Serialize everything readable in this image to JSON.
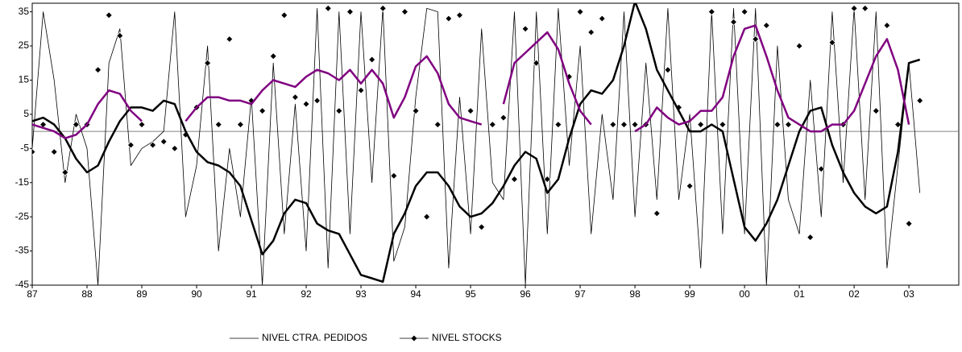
{
  "chart_data": {
    "type": "line",
    "x": [
      1987,
      1987.2,
      1987.4,
      1987.6,
      1987.8,
      1988,
      1988.2,
      1988.4,
      1988.6,
      1988.8,
      1989,
      1989.2,
      1989.4,
      1989.6,
      1989.8,
      1990,
      1990.2,
      1990.4,
      1990.6,
      1990.8,
      1991,
      1991.2,
      1991.4,
      1991.6,
      1991.8,
      1992,
      1992.2,
      1992.4,
      1992.6,
      1992.8,
      1993,
      1993.2,
      1993.4,
      1993.6,
      1993.8,
      1994,
      1994.2,
      1994.4,
      1994.6,
      1994.8,
      1995,
      1995.2,
      1995.4,
      1995.6,
      1995.8,
      1996,
      1996.2,
      1996.4,
      1996.6,
      1996.8,
      1997,
      1997.2,
      1997.4,
      1997.6,
      1997.8,
      1998,
      1998.2,
      1998.4,
      1998.6,
      1998.8,
      1999,
      1999.2,
      1999.4,
      1999.6,
      1999.8,
      2000,
      2000.2,
      2000.4,
      2000.6,
      2000.8,
      2001,
      2001.2,
      2001.4,
      2001.6,
      2001.8,
      2002,
      2002.2,
      2002.4,
      2002.6,
      2002.8,
      2003,
      2003.2
    ],
    "series": [
      {
        "name": "NIVEL CTRA. PEDIDOS",
        "color": "#000000",
        "style": "thin",
        "values": [
          -5,
          35,
          15,
          -15,
          5,
          -5,
          -45,
          20,
          30,
          -10,
          -5,
          -3,
          0,
          35,
          -25,
          -10,
          25,
          -35,
          -5,
          -25,
          10,
          -45,
          20,
          -30,
          8,
          -35,
          36,
          -40,
          35,
          -30,
          35,
          -15,
          36,
          -38,
          -28,
          10,
          36,
          35,
          -40,
          10,
          -30,
          30,
          -15,
          -20,
          35,
          -45,
          35,
          -30,
          36,
          -10,
          25,
          -30,
          5,
          -20,
          35,
          -25,
          20,
          -20,
          36,
          -20,
          5,
          -40,
          35,
          -30,
          36,
          -30,
          36,
          -45,
          25,
          -20,
          -30,
          15,
          -25,
          35,
          -15,
          36,
          -20,
          35,
          -40,
          -10,
          20,
          -18
        ]
      },
      {
        "name": "NIVEL STOCKS",
        "color": "#000000",
        "style": "markers",
        "values": [
          -6,
          2,
          -6,
          -12,
          2,
          2,
          18,
          34,
          28,
          -4,
          2,
          -4,
          -3,
          -5,
          -1,
          7,
          20,
          2,
          27,
          2,
          9,
          6,
          22,
          34,
          10,
          8,
          9,
          36,
          6,
          35,
          12,
          21,
          36,
          -13,
          35,
          6,
          -25,
          2,
          33,
          34,
          6,
          -28,
          2,
          4,
          -14,
          30,
          20,
          -14,
          2,
          16,
          35,
          29,
          33,
          2,
          2,
          2,
          2,
          -24,
          18,
          7,
          -16,
          2,
          35,
          2,
          32,
          35,
          27,
          31,
          2,
          2,
          25,
          -31,
          -11,
          26,
          2,
          36,
          36,
          6,
          31,
          2,
          -27,
          9
        ]
      },
      {
        "color": "#000000",
        "style": "thick",
        "values": [
          3,
          4,
          2,
          -2,
          -8,
          -12,
          -10,
          -3,
          3,
          7,
          7,
          6,
          9,
          8,
          0,
          -6,
          -9,
          -10,
          -12,
          -16,
          -26,
          -36,
          -32,
          -24,
          -20,
          -21,
          -27,
          -29,
          -30,
          -36,
          -42,
          -43,
          -44,
          -30,
          -24,
          -16,
          -12,
          -12,
          -16,
          -22,
          -25,
          -24,
          -21,
          -16,
          -10,
          -6,
          -8,
          -18,
          -14,
          -2,
          8,
          12,
          11,
          15,
          25,
          38,
          30,
          18,
          12,
          6,
          0,
          0,
          2,
          0,
          -14,
          -28,
          -32,
          -27,
          -20,
          -10,
          0,
          6,
          7,
          -4,
          -12,
          -18,
          -22,
          -24,
          -22,
          -6,
          20,
          21
        ]
      },
      {
        "color": "#800080",
        "style": "thick",
        "values": [
          2,
          1,
          0,
          -2,
          -1,
          2,
          8,
          12,
          11,
          6,
          3,
          null,
          null,
          null,
          3,
          7,
          10,
          10,
          9,
          9,
          8,
          12,
          15,
          14,
          13,
          16,
          18,
          17,
          15,
          18,
          14,
          18,
          14,
          4,
          10,
          19,
          22,
          17,
          8,
          4,
          3,
          2,
          null,
          8,
          20,
          23,
          26,
          29,
          24,
          14,
          6,
          2,
          null,
          null,
          null,
          0,
          2,
          7,
          4,
          2,
          3,
          6,
          6,
          10,
          22,
          30,
          31,
          22,
          12,
          4,
          2,
          0,
          0,
          2,
          2,
          6,
          14,
          22,
          27,
          18,
          2,
          null
        ]
      }
    ],
    "xlim": [
      1987,
      2003.91
    ],
    "xticks": [
      {
        "value": 1987,
        "label": "87"
      },
      {
        "value": 1988,
        "label": "88"
      },
      {
        "value": 1989,
        "label": "89"
      },
      {
        "value": 1990,
        "label": "90"
      },
      {
        "value": 1991,
        "label": "91"
      },
      {
        "value": 1992,
        "label": "92"
      },
      {
        "value": 1993,
        "label": "93"
      },
      {
        "value": 1994,
        "label": "94"
      },
      {
        "value": 1995,
        "label": "95"
      },
      {
        "value": 1996,
        "label": "96"
      },
      {
        "value": 1997,
        "label": "97"
      },
      {
        "value": 1998,
        "label": "98"
      },
      {
        "value": 1999,
        "label": "99"
      },
      {
        "value": 2000,
        "label": "00"
      },
      {
        "value": 2001,
        "label": "01"
      },
      {
        "value": 2002,
        "label": "02"
      },
      {
        "value": 2003,
        "label": "03"
      }
    ],
    "ylim": [
      -45,
      37.5
    ],
    "yticks": [
      -45,
      -35,
      -25,
      -15,
      -5,
      5,
      15,
      25,
      35
    ],
    "legend": "bottom"
  }
}
